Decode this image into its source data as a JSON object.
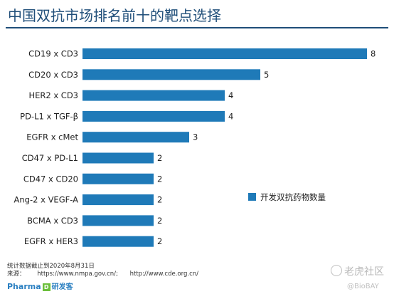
{
  "chart_data": {
    "type": "bar",
    "orientation": "horizontal",
    "title": "中国双抗市场排名前十的靶点选择",
    "categories": [
      "CD19 x CD3",
      "CD20 x CD3",
      "HER2 x CD3",
      "PD-L1 x TGF-β",
      "EGFR x cMet",
      "CD47 x PD-L1",
      "CD47 x CD20",
      "Ang-2 x VEGF-A",
      "BCMA x CD3",
      "EGFR x HER3"
    ],
    "series": [
      {
        "name": "开发双抗药物数量",
        "values": [
          8,
          5,
          4,
          4,
          3,
          2,
          2,
          2,
          2,
          2
        ]
      }
    ],
    "xlim": [
      0,
      8
    ],
    "data_labels": true,
    "grid": false,
    "legend_position": "right",
    "bar_color": "#1f7ab8"
  },
  "footnote": {
    "line1": "统计数据截止到2020年8月31日",
    "line2_prefix": "来源：",
    "url1": "https://www.nmpa.gov.cn/;",
    "url2": "http://www.cde.org.cn/"
  },
  "brand": {
    "name": "Pharma",
    "badge": "D",
    "cn_name": "研发客"
  },
  "watermark": {
    "main": "老虎社区",
    "sub": "@BioBAY"
  }
}
